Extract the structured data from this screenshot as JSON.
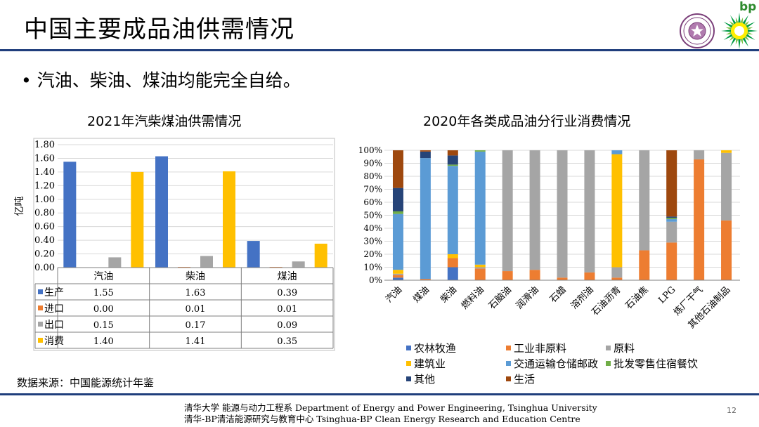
{
  "header": {
    "title": "中国主要成品油供需情况",
    "logo_text": "bp"
  },
  "bullet": "• 汽油、柴油、煤油均能完全自给。",
  "source": "数据来源：中国能源统计年鉴",
  "footer": {
    "line1": "清华大学 能源与动力工程系 Department of Energy and Power Engineering, Tsinghua University",
    "line2": "清华-BP清洁能源研究与教育中心 Tsinghua-BP Clean Energy Research and Education Centre",
    "page": "12"
  },
  "colors": {
    "blue": "#4472c4",
    "orange": "#ed7d31",
    "gray": "#a5a5a5",
    "yellow": "#ffc000",
    "lightblue": "#5b9bd5",
    "green": "#70ad47",
    "navy": "#264478",
    "brown": "#9e480e"
  },
  "chart_data": [
    {
      "type": "bar",
      "title": "2021年汽柴煤油供需情况",
      "ylabel": "亿吨",
      "ylim": [
        0,
        1.8
      ],
      "yticks": [
        "0.00",
        "0.20",
        "0.40",
        "0.60",
        "0.80",
        "1.00",
        "1.20",
        "1.40",
        "1.60",
        "1.80"
      ],
      "categories": [
        "汽油",
        "柴油",
        "煤油"
      ],
      "series": [
        {
          "name": "生产",
          "color": "#4472c4",
          "values": [
            1.55,
            1.63,
            0.39
          ],
          "labels": [
            "1.55",
            "1.63",
            "0.39"
          ]
        },
        {
          "name": "进口",
          "color": "#ed7d31",
          "values": [
            0.0,
            0.01,
            0.01
          ],
          "labels": [
            "0.00",
            "0.01",
            "0.01"
          ]
        },
        {
          "name": "出口",
          "color": "#a5a5a5",
          "values": [
            0.15,
            0.17,
            0.09
          ],
          "labels": [
            "0.15",
            "0.17",
            "0.09"
          ]
        },
        {
          "name": "消费",
          "color": "#ffc000",
          "values": [
            1.4,
            1.41,
            0.35
          ],
          "labels": [
            "1.40",
            "1.41",
            "0.35"
          ]
        }
      ]
    },
    {
      "type": "bar",
      "stacked": "percent",
      "title": "2020年各类成品油分行业消费情况",
      "ylim": [
        0,
        100
      ],
      "yticks": [
        "0%",
        "10%",
        "20%",
        "30%",
        "40%",
        "50%",
        "60%",
        "70%",
        "80%",
        "90%",
        "100%"
      ],
      "categories": [
        "汽油",
        "煤油",
        "柴油",
        "燃料油",
        "石脑油",
        "润滑油",
        "石蜡",
        "溶剂油",
        "石油沥青",
        "石油焦",
        "LPG",
        "炼厂干气",
        "其他石油制品"
      ],
      "series": [
        {
          "name": "农林牧渔",
          "color": "#4472c4",
          "values": [
            2,
            0,
            10,
            0,
            0,
            0,
            0,
            0,
            0,
            0,
            0,
            0,
            0
          ]
        },
        {
          "name": "工业非原料",
          "color": "#ed7d31",
          "values": [
            2,
            1,
            7,
            9,
            7,
            8,
            2,
            6,
            2,
            23,
            29,
            93,
            46
          ]
        },
        {
          "name": "原料",
          "color": "#a5a5a5",
          "values": [
            1,
            0,
            0,
            1,
            93,
            92,
            98,
            94,
            8,
            77,
            16,
            7,
            52
          ]
        },
        {
          "name": "建筑业",
          "color": "#ffc000",
          "values": [
            3,
            0,
            3,
            2,
            0,
            0,
            0,
            0,
            87,
            0,
            0,
            0,
            2
          ]
        },
        {
          "name": "交通运输仓储邮政",
          "color": "#5b9bd5",
          "values": [
            43,
            93,
            68,
            87,
            0,
            0,
            0,
            0,
            3,
            0,
            2,
            0,
            0
          ]
        },
        {
          "name": "批发零售住宿餐饮",
          "color": "#70ad47",
          "values": [
            2,
            0,
            1,
            1,
            0,
            0,
            0,
            0,
            0,
            0,
            1,
            0,
            0
          ]
        },
        {
          "name": "其他",
          "color": "#264478",
          "values": [
            18,
            5,
            7,
            0,
            0,
            0,
            0,
            0,
            0,
            0,
            1,
            0,
            0
          ]
        },
        {
          "name": "生活",
          "color": "#9e480e",
          "values": [
            29,
            1,
            4,
            0,
            0,
            0,
            0,
            0,
            0,
            0,
            51,
            0,
            0
          ]
        }
      ]
    }
  ]
}
